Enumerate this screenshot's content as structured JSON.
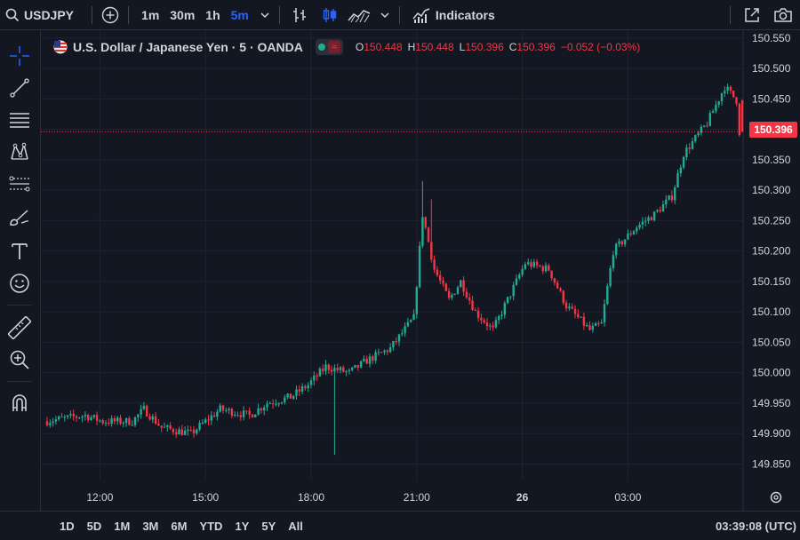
{
  "toolbar": {
    "symbol": "USDJPY",
    "intervals": [
      "1m",
      "30m",
      "1h",
      "5m"
    ],
    "active_interval": "5m",
    "indicators_label": "Indicators"
  },
  "legend": {
    "title": "U.S. Dollar / Japanese Yen · 5 · OANDA",
    "badge_wave": "≈",
    "o_label": "O",
    "o_value": "150.448",
    "h_label": "H",
    "h_value": "150.448",
    "l_label": "L",
    "l_value": "150.396",
    "c_label": "C",
    "c_value": "150.396",
    "change": "−0.052 (−0.03%)"
  },
  "current_price": "150.396",
  "bottom": {
    "ranges": [
      "1D",
      "5D",
      "1M",
      "3M",
      "6M",
      "YTD",
      "1Y",
      "5Y",
      "All"
    ],
    "clock": "03:39:08 (UTC)"
  },
  "colors": {
    "up": "#22ab94",
    "down": "#f23645",
    "bg": "#131722",
    "grid": "#1f2330",
    "accent": "#2962ff"
  },
  "icons": [
    "search-icon",
    "add-circle-icon",
    "chevron-down-icon",
    "bar-style-icon",
    "candles-icon",
    "area-icon",
    "indicators-icon",
    "fullscreen-icon",
    "camera-icon",
    "crosshair-icon",
    "trendline-icon",
    "fib-icon",
    "pattern-icon",
    "forecast-icon",
    "brush-icon",
    "text-icon",
    "emoji-icon",
    "ruler-icon",
    "zoom-icon",
    "magnet-icon",
    "settings-icon"
  ],
  "chart_data": {
    "type": "candlestick",
    "y_ticks": [
      "150.550",
      "150.500",
      "150.450",
      "150.400",
      "150.350",
      "150.300",
      "150.250",
      "150.200",
      "150.150",
      "150.100",
      "150.050",
      "150.000",
      "149.950",
      "149.900",
      "149.850"
    ],
    "ylim": [
      149.82,
      150.56
    ],
    "x_ticks": [
      "12:00",
      "15:00",
      "18:00",
      "21:00",
      "26",
      "03:00"
    ],
    "x_tick_values": [
      18,
      54,
      90,
      126,
      162,
      198
    ],
    "bold_x_tick": "26",
    "candle_count": 220,
    "trend": [
      [
        0,
        149.92
      ],
      [
        14,
        149.93
      ],
      [
        20,
        149.92
      ],
      [
        30,
        149.92
      ],
      [
        34,
        149.94
      ],
      [
        40,
        149.91
      ],
      [
        50,
        149.9
      ],
      [
        60,
        149.94
      ],
      [
        70,
        149.93
      ],
      [
        76,
        149.95
      ],
      [
        84,
        149.96
      ],
      [
        90,
        149.98
      ],
      [
        96,
        150.01
      ],
      [
        104,
        150.0
      ],
      [
        110,
        150.02
      ],
      [
        118,
        150.04
      ],
      [
        126,
        150.09
      ],
      [
        129,
        150.26
      ],
      [
        133,
        150.17
      ],
      [
        138,
        150.12
      ],
      [
        142,
        150.15
      ],
      [
        147,
        150.1
      ],
      [
        153,
        150.07
      ],
      [
        158,
        150.12
      ],
      [
        164,
        150.18
      ],
      [
        172,
        150.17
      ],
      [
        178,
        150.11
      ],
      [
        186,
        150.07
      ],
      [
        190,
        150.08
      ],
      [
        194,
        150.2
      ],
      [
        202,
        150.24
      ],
      [
        208,
        150.26
      ],
      [
        214,
        150.29
      ],
      [
        218,
        150.36
      ],
      [
        226,
        150.41
      ],
      [
        232,
        150.47
      ],
      [
        236,
        150.448
      ],
      [
        237,
        150.396
      ]
    ],
    "last_candle": {
      "open": 150.448,
      "high": 150.448,
      "low": 150.396,
      "close": 150.396
    }
  }
}
